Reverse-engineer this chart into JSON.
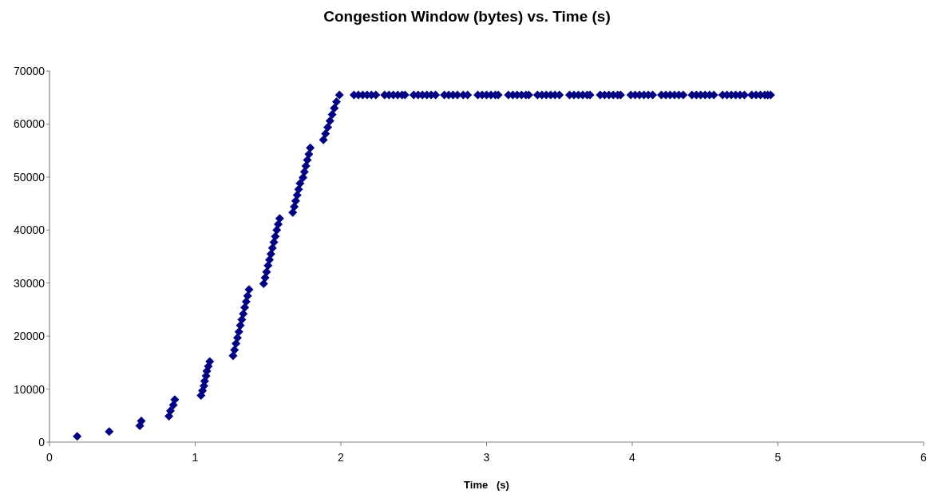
{
  "chart_data": {
    "type": "scatter",
    "title": "Congestion Window (bytes) vs. Time (s)",
    "xlabel": "Time   (s)",
    "xlim": [
      0,
      6
    ],
    "xticks": [
      0,
      1,
      2,
      3,
      4,
      5,
      6
    ],
    "ylim": [
      0,
      70000
    ],
    "yticks": [
      0,
      10000,
      20000,
      30000,
      40000,
      50000,
      60000,
      70000
    ],
    "marker": "diamond",
    "series": [
      {
        "color": "#000080",
        "x": [
          0.19,
          0.41,
          0.62,
          0.63,
          0.82,
          0.83,
          0.85,
          0.86,
          1.04,
          1.05,
          1.06,
          1.065,
          1.075,
          1.08,
          1.09,
          1.1,
          1.26,
          1.27,
          1.28,
          1.29,
          1.3,
          1.31,
          1.32,
          1.33,
          1.34,
          1.35,
          1.36,
          1.37,
          1.47,
          1.48,
          1.49,
          1.5,
          1.51,
          1.52,
          1.53,
          1.54,
          1.55,
          1.56,
          1.57,
          1.58,
          1.67,
          1.68,
          1.69,
          1.7,
          1.71,
          1.72,
          1.74,
          1.75,
          1.76,
          1.77,
          1.78,
          1.79,
          1.88,
          1.895,
          1.91,
          1.925,
          1.94,
          1.955,
          1.97,
          1.99,
          2.09,
          2.12,
          2.15,
          2.18,
          2.21,
          2.24,
          2.3,
          2.33,
          2.36,
          2.39,
          2.42,
          2.44,
          2.5,
          2.53,
          2.56,
          2.59,
          2.62,
          2.65,
          2.71,
          2.74,
          2.77,
          2.8,
          2.84,
          2.87,
          2.94,
          2.97,
          3.0,
          3.03,
          3.06,
          3.08,
          3.15,
          3.18,
          3.21,
          3.24,
          3.27,
          3.29,
          3.35,
          3.38,
          3.41,
          3.44,
          3.47,
          3.5,
          3.57,
          3.6,
          3.63,
          3.66,
          3.69,
          3.71,
          3.78,
          3.81,
          3.84,
          3.87,
          3.9,
          3.92,
          3.99,
          4.02,
          4.05,
          4.08,
          4.11,
          4.14,
          4.2,
          4.23,
          4.26,
          4.29,
          4.32,
          4.35,
          4.41,
          4.44,
          4.47,
          4.5,
          4.53,
          4.56,
          4.62,
          4.65,
          4.68,
          4.71,
          4.74,
          4.77,
          4.82,
          4.85,
          4.88,
          4.91,
          4.93,
          4.95
        ],
        "values": [
          1100,
          2000,
          3100,
          4000,
          4900,
          5900,
          7000,
          8000,
          8800,
          9700,
          10600,
          11500,
          12500,
          13400,
          14300,
          15200,
          16300,
          17400,
          18600,
          19700,
          20800,
          22000,
          23100,
          24200,
          25400,
          26500,
          27600,
          28800,
          29900,
          31000,
          32100,
          33300,
          34400,
          35500,
          36600,
          37700,
          38800,
          40000,
          41100,
          42200,
          43300,
          44400,
          45500,
          46600,
          47700,
          48800,
          49900,
          51000,
          52100,
          53200,
          54300,
          55500,
          57000,
          58200,
          59400,
          60600,
          61800,
          63000,
          64200,
          65500,
          65500,
          65500,
          65500,
          65500,
          65500,
          65500,
          65500,
          65500,
          65500,
          65500,
          65500,
          65500,
          65500,
          65500,
          65500,
          65500,
          65500,
          65500,
          65500,
          65500,
          65500,
          65500,
          65500,
          65500,
          65500,
          65500,
          65500,
          65500,
          65500,
          65500,
          65500,
          65500,
          65500,
          65500,
          65500,
          65500,
          65500,
          65500,
          65500,
          65500,
          65500,
          65500,
          65500,
          65500,
          65500,
          65500,
          65500,
          65500,
          65500,
          65500,
          65500,
          65500,
          65500,
          65500,
          65500,
          65500,
          65500,
          65500,
          65500,
          65500,
          65500,
          65500,
          65500,
          65500,
          65500,
          65500,
          65500,
          65500,
          65500,
          65500,
          65500,
          65500,
          65500,
          65500,
          65500,
          65500,
          65500,
          65500,
          65500,
          65500,
          65500,
          65500,
          65500,
          65500
        ]
      }
    ]
  }
}
